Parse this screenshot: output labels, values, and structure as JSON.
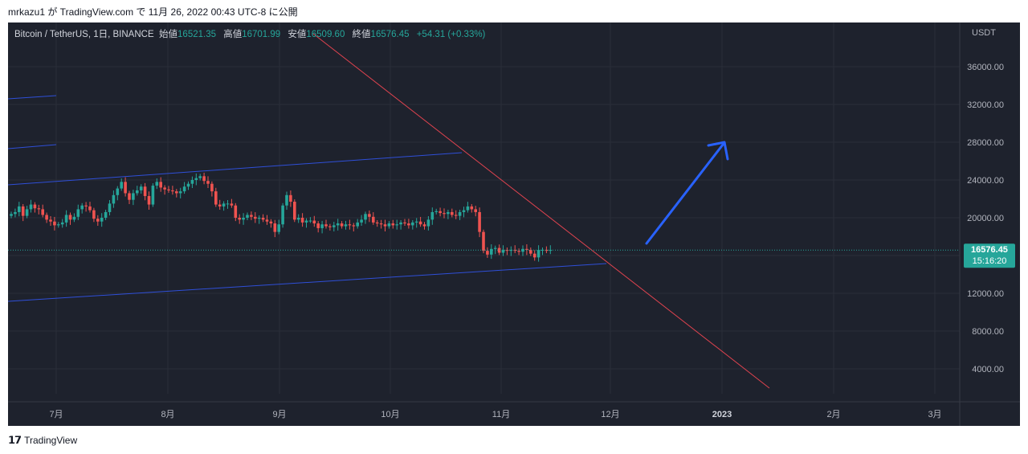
{
  "caption": "mrkazu1 が TradingView.com で 11月 26, 2022 00:43 UTC-8 に公開",
  "legend": {
    "symbol": "Bitcoin / TetherUS, 1日, BINANCE",
    "open_label": "始値",
    "open": "16521.35",
    "high_label": "高値",
    "high": "16701.99",
    "low_label": "安値",
    "low": "16509.60",
    "close_label": "終値",
    "close": "16576.45",
    "change": "+54.31 (+0.33%)"
  },
  "price_axis": {
    "currency": "USDT",
    "ticks": [
      "36000.00",
      "32000.00",
      "28000.00",
      "24000.00",
      "20000.00",
      "16000.00",
      "12000.00",
      "8000.00",
      "4000.00"
    ],
    "last_price": "16576.45",
    "countdown": "15:16:20"
  },
  "time_axis": {
    "ticks": [
      "7月",
      "8月",
      "9月",
      "10月",
      "11月",
      "12月",
      "2023",
      "2月",
      "3月"
    ]
  },
  "colors": {
    "bg": "#1e222d",
    "up": "#26a69a",
    "down": "#ef5350",
    "trend_red": "#e0434f",
    "channel_blue": "#2f4fd8",
    "arrow_blue": "#2962ff"
  },
  "footer": {
    "brand": "TradingView",
    "icon": "tradingview-logo-icon"
  },
  "chart_data": {
    "type": "candlestick",
    "symbol": "BTCUSDT",
    "y_axis_label": "USDT",
    "ylim": [
      0,
      38000
    ],
    "x_axis": [
      "7月",
      "8月",
      "9月",
      "10月",
      "11月",
      "12月",
      "2023",
      "2月",
      "3月"
    ],
    "approx_daily_closes": [
      20400,
      20600,
      21200,
      20200,
      20900,
      21400,
      21000,
      20900,
      20300,
      19800,
      19600,
      19200,
      19300,
      19500,
      20300,
      19800,
      20100,
      20900,
      21300,
      21200,
      20800,
      19900,
      19600,
      20000,
      20600,
      21500,
      22400,
      23100,
      23800,
      22600,
      21900,
      22600,
      22900,
      23300,
      22300,
      21400,
      23400,
      23800,
      23200,
      23000,
      22900,
      22800,
      22600,
      22800,
      23300,
      23600,
      24000,
      24200,
      24400,
      23900,
      23600,
      22800,
      21400,
      21200,
      21500,
      21500,
      21300,
      20000,
      19800,
      20000,
      20300,
      20100,
      19900,
      20000,
      19800,
      19600,
      19400,
      18500,
      19300,
      21300,
      22400,
      21700,
      19800,
      20000,
      19500,
      19700,
      19700,
      19400,
      18900,
      19300,
      19100,
      19000,
      19200,
      19400,
      19100,
      19300,
      19200,
      19100,
      19500,
      19800,
      20400,
      20100,
      19500,
      19400,
      19300,
      19100,
      19400,
      19200,
      19300,
      19500,
      19400,
      19200,
      19500,
      19600,
      19300,
      19100,
      19800,
      20600,
      20700,
      20500,
      20400,
      20600,
      20300,
      20200,
      20600,
      20800,
      21200,
      20900,
      20600,
      18500,
      16500,
      16100,
      16700,
      16800,
      16300,
      16600,
      16500,
      16600,
      16500,
      16400,
      16700,
      16600,
      16200,
      15800,
      16600,
      16600,
      16500,
      16600
    ],
    "last_close": 16576.45,
    "drawings": [
      {
        "type": "trendline",
        "color": "red",
        "desc": "descending resistance"
      },
      {
        "type": "trendline",
        "color": "blue",
        "desc": "ascending support"
      },
      {
        "type": "arrow",
        "color": "blue",
        "direction": "up"
      }
    ]
  }
}
